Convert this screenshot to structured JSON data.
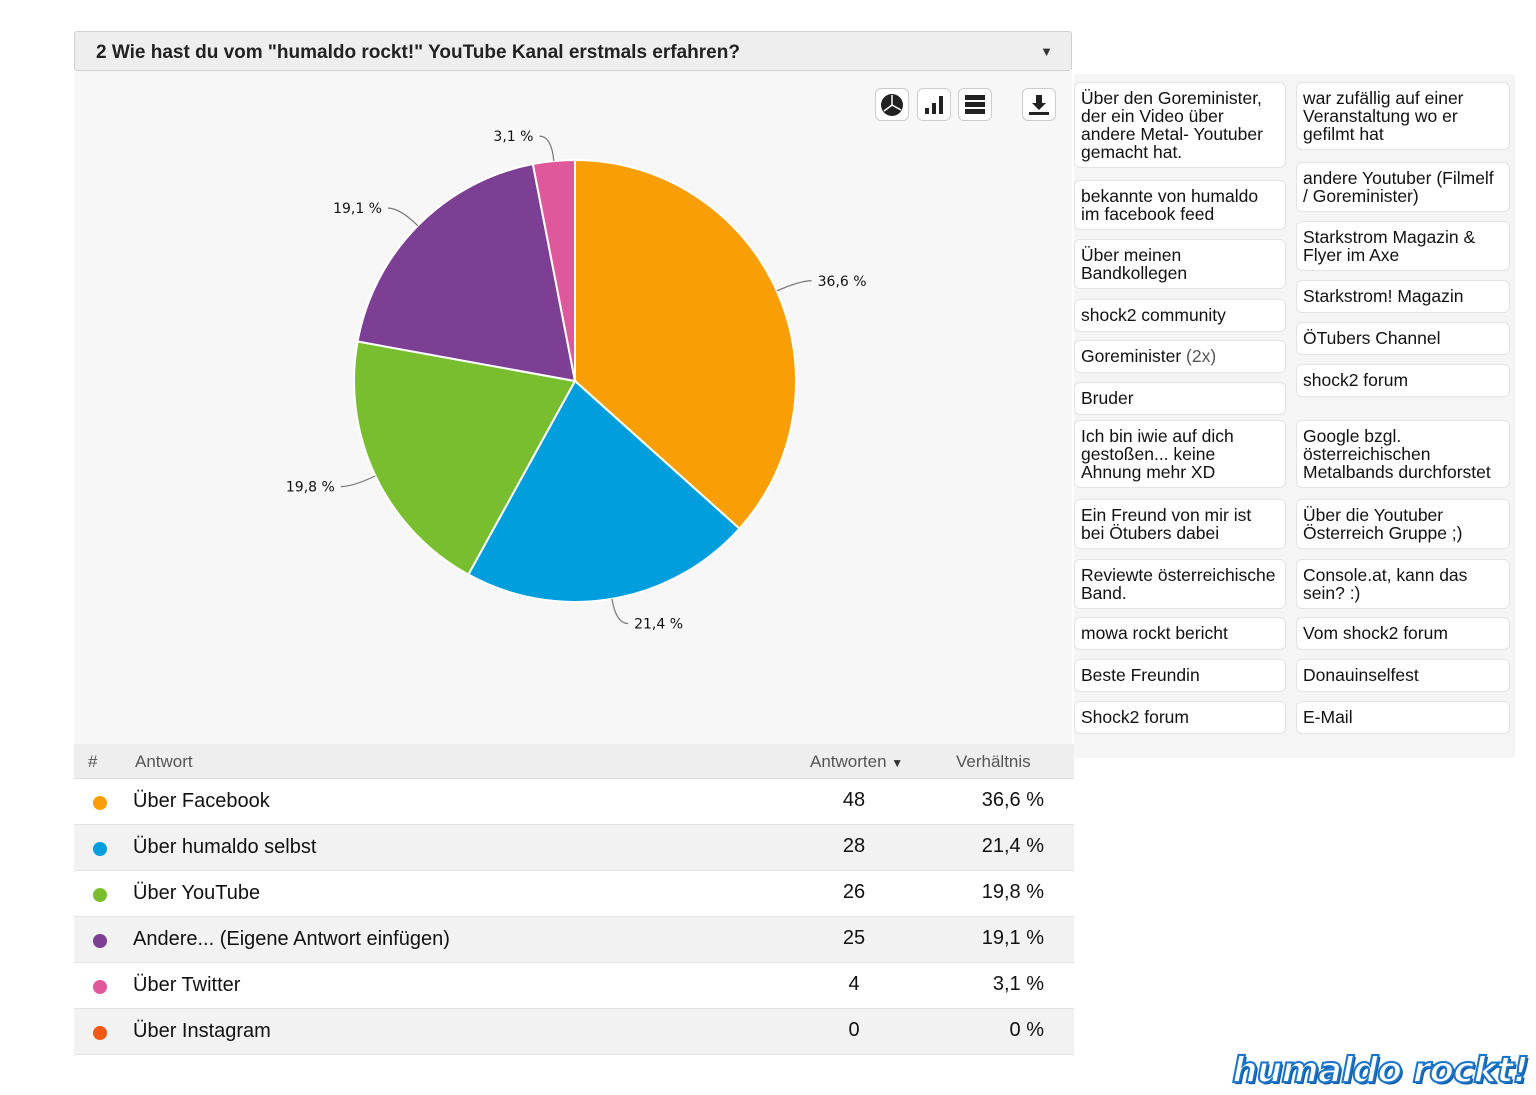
{
  "question": {
    "title": "2 Wie hast du vom \"humaldo rockt!\" YouTube Kanal erstmals erfahren?",
    "caret": "▼"
  },
  "toolbar": {
    "pie_icon": "pie-chart-icon",
    "bar_icon": "bar-chart-icon",
    "table_icon": "table-icon",
    "download_icon": "download-icon"
  },
  "chart_data": {
    "type": "pie",
    "title": "2 Wie hast du vom \"humaldo rockt!\" YouTube Kanal erstmals erfahren?",
    "slices": [
      {
        "label": "Über Facebook",
        "value": 48,
        "percent_label": "36,6 %",
        "color": "#f99f05"
      },
      {
        "label": "Über humaldo selbst",
        "value": 28,
        "percent_label": "21,4 %",
        "color": "#009edd"
      },
      {
        "label": "Über YouTube",
        "value": 26,
        "percent_label": "19,8 %",
        "color": "#78be2e"
      },
      {
        "label": "Andere... (Eigene Antwort einfügen)",
        "value": 25,
        "percent_label": "19,1 %",
        "color": "#7c3f94"
      },
      {
        "label": "Über Twitter",
        "value": 4,
        "percent_label": "3,1 %",
        "color": "#e0589c"
      },
      {
        "label": "Über Instagram",
        "value": 0,
        "percent_label": "0 %",
        "color": "#f05a14"
      }
    ]
  },
  "table": {
    "headers": {
      "num": "#",
      "answer": "Antwort",
      "count": "Antworten",
      "sort_caret": "▼",
      "ratio": "Verhältnis"
    },
    "rows": [
      {
        "answer": "Über Facebook",
        "count": "48",
        "ratio": "36,6 %",
        "color": "#f99f05"
      },
      {
        "answer": "Über humaldo selbst",
        "count": "28",
        "ratio": "21,4 %",
        "color": "#009edd"
      },
      {
        "answer": "Über YouTube",
        "count": "26",
        "ratio": "19,8 %",
        "color": "#78be2e"
      },
      {
        "answer": "Andere... (Eigene Antwort einfügen)",
        "count": "25",
        "ratio": "19,1 %",
        "color": "#7c3f94"
      },
      {
        "answer": "Über Twitter",
        "count": "4",
        "ratio": "3,1 %",
        "color": "#e0589c"
      },
      {
        "answer": "Über Instagram",
        "count": "0",
        "ratio": "0 %",
        "color": "#f05a14"
      }
    ]
  },
  "other_answers": {
    "left": [
      {
        "text": "Über den Goreminister, der ein Video über andere Metal- Youtuber gemacht hat.",
        "count": ""
      },
      {
        "text": "bekannte von humaldo im facebook feed",
        "count": ""
      },
      {
        "text": "Über meinen Bandkollegen",
        "count": ""
      },
      {
        "text": "shock2 community",
        "count": ""
      },
      {
        "text": "Goreminister",
        "count": "(2x)"
      },
      {
        "text": "Bruder",
        "count": ""
      },
      {
        "text": "Ich bin iwie auf dich gestoßen... keine Ahnung mehr XD",
        "count": ""
      },
      {
        "text": "Ein Freund von mir ist bei Ötubers dabei",
        "count": ""
      },
      {
        "text": "Reviewte österreichische Band.",
        "count": ""
      },
      {
        "text": "mowa rockt bericht",
        "count": ""
      },
      {
        "text": "Beste Freundin",
        "count": ""
      },
      {
        "text": "Shock2 forum",
        "count": ""
      }
    ],
    "right": [
      {
        "text": "war zufällig auf einer Veranstaltung wo er gefilmt hat",
        "count": ""
      },
      {
        "text": "andere Youtuber (Filmelf / Goreminister)",
        "count": ""
      },
      {
        "text": "Starkstrom Magazin & Flyer im Axe",
        "count": ""
      },
      {
        "text": "Starkstrom! Magazin",
        "count": ""
      },
      {
        "text": "ÖTubers Channel",
        "count": ""
      },
      {
        "text": "shock2 forum",
        "count": ""
      },
      {
        "text": "Google bzgl. österreichischen Metalbands durchforstet",
        "count": ""
      },
      {
        "text": "Über die Youtuber Österreich Gruppe ;)",
        "count": ""
      },
      {
        "text": "Console.at, kann das sein? :)",
        "count": ""
      },
      {
        "text": "Vom shock2 forum",
        "count": ""
      },
      {
        "text": "Donauinselfest",
        "count": ""
      },
      {
        "text": "E-Mail",
        "count": ""
      }
    ]
  },
  "logo": {
    "text": "humaldo rockt!"
  }
}
